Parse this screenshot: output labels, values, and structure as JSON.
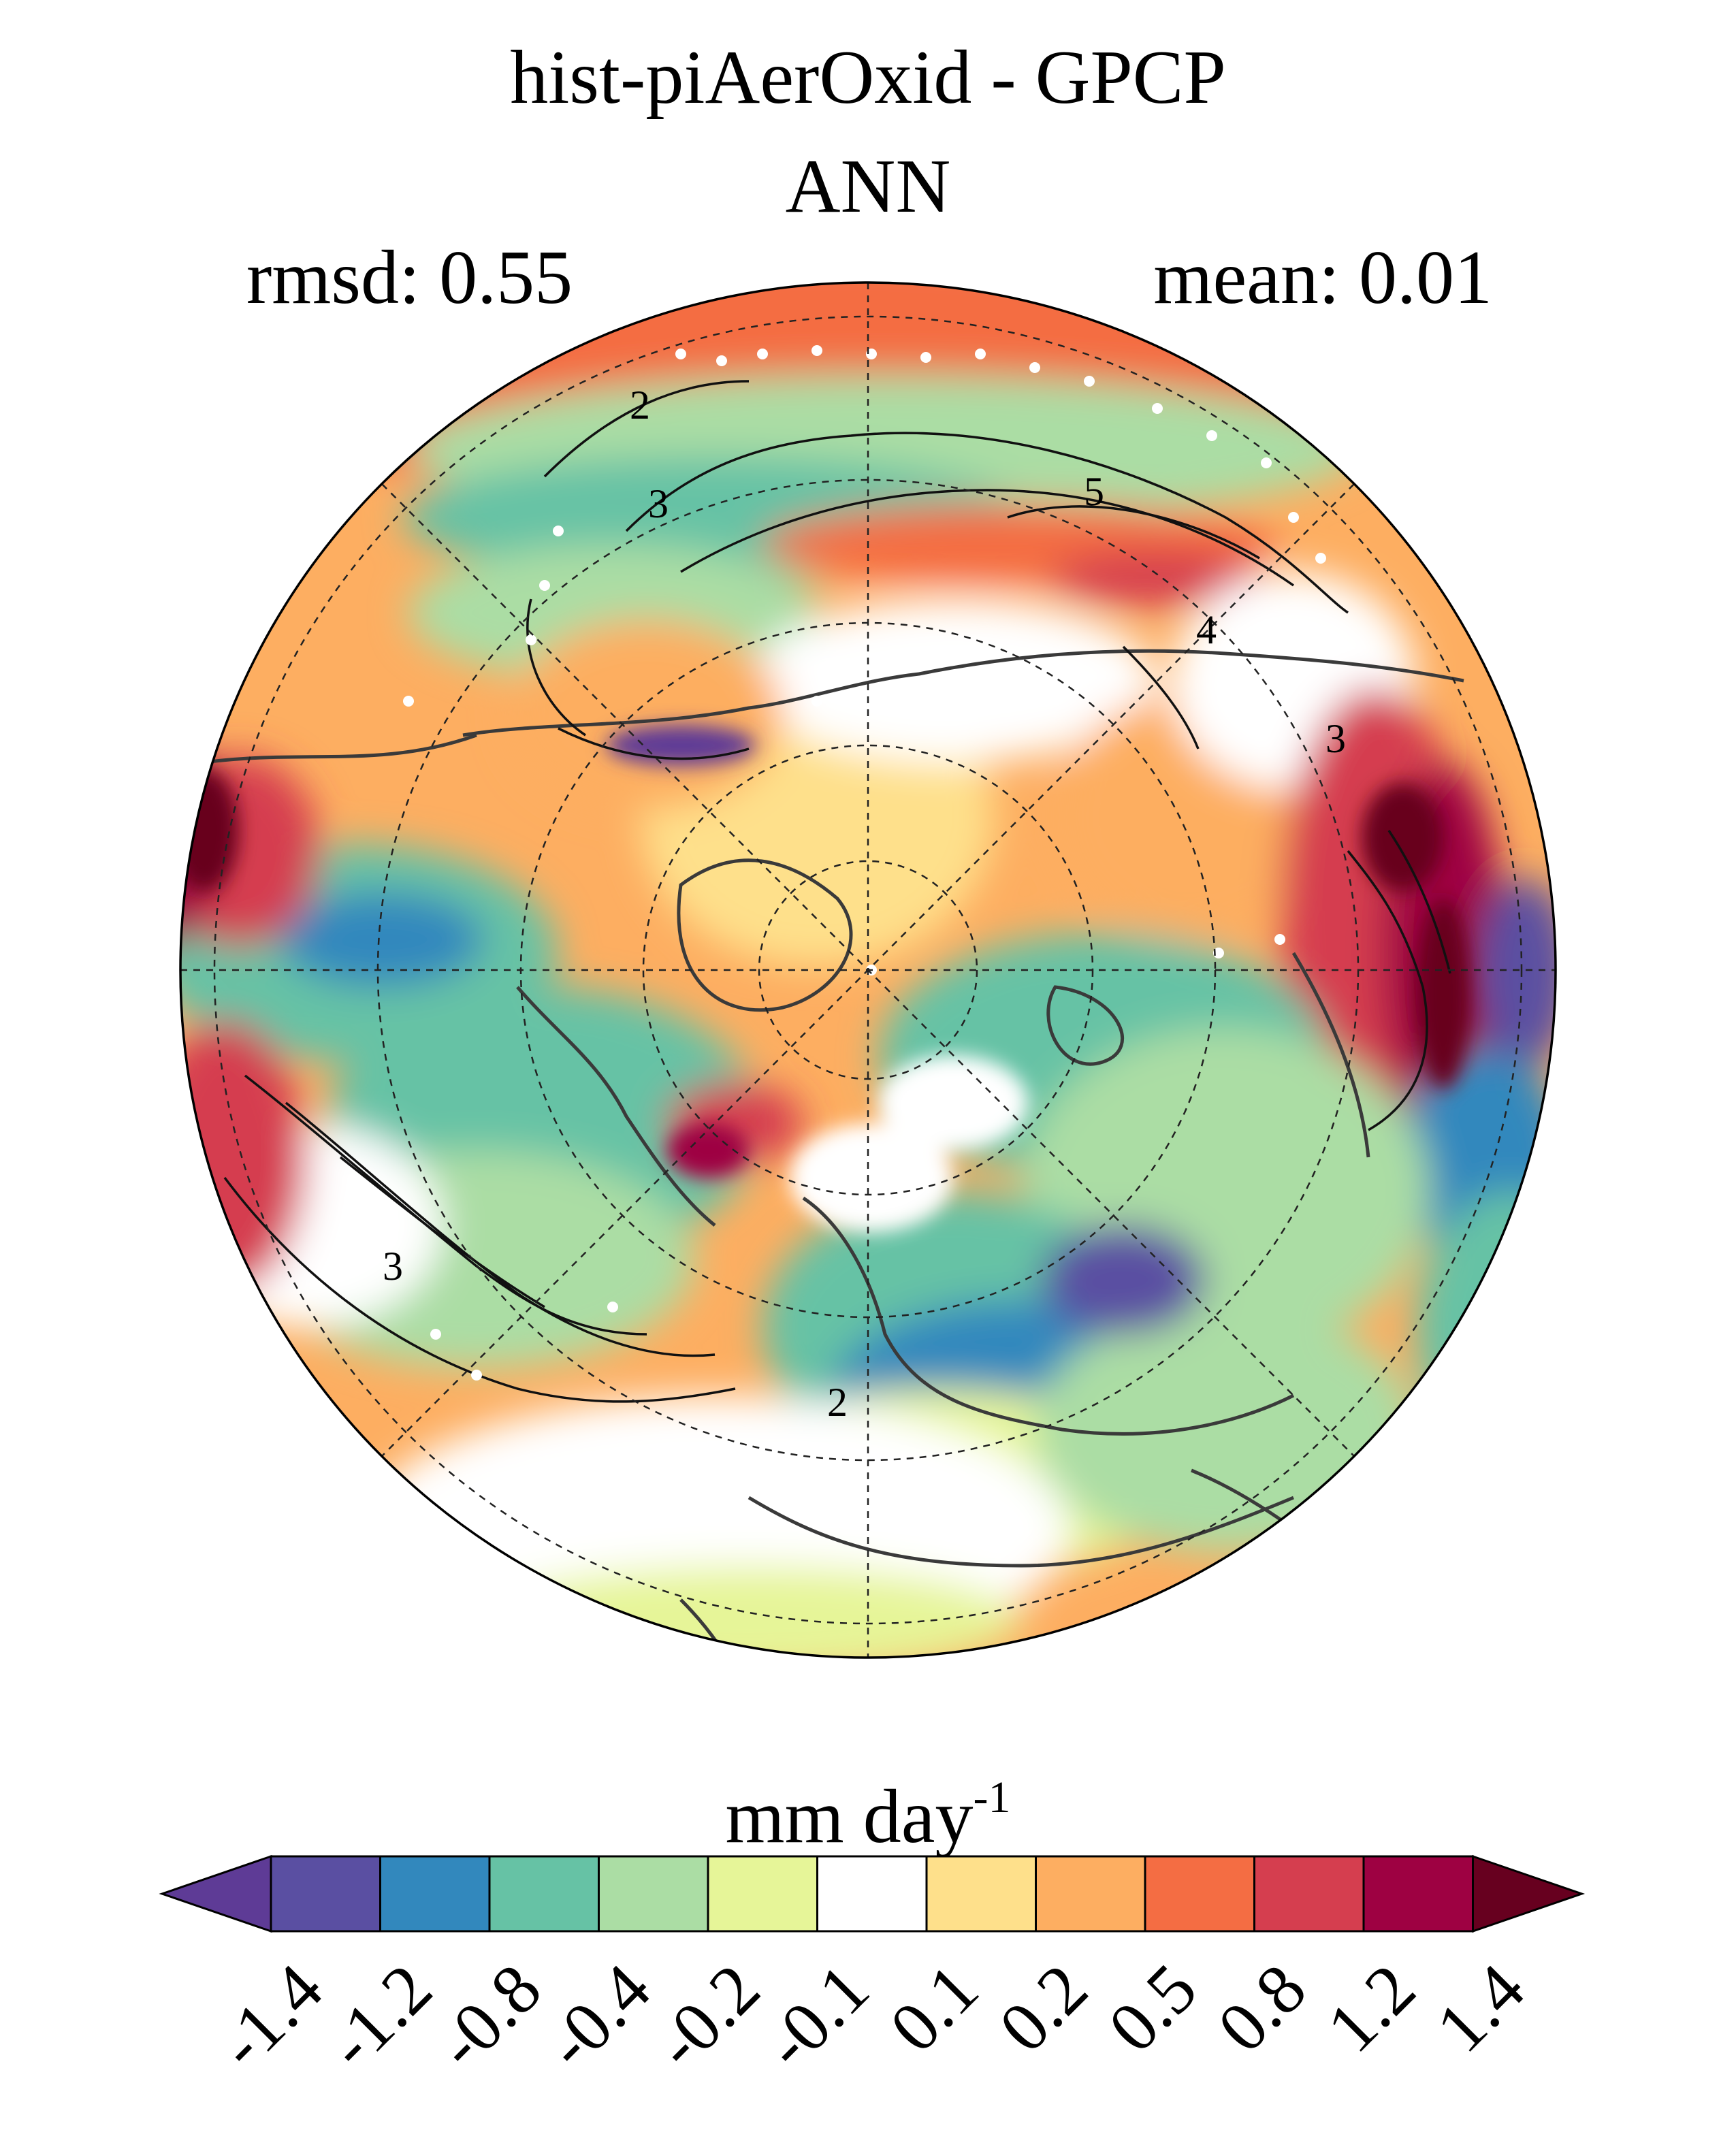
{
  "title": "hist-piAerOxid - GPCP",
  "subtitle": "ANN",
  "stats": {
    "rmsd": "rmsd: 0.55",
    "mean": "mean: 0.01"
  },
  "colorbar": {
    "units_base": "mm day",
    "units_exp": "-1",
    "levels": [
      "-1.4",
      "-1.2",
      "-0.8",
      "-0.4",
      "-0.2",
      "-0.1",
      "0.1",
      "0.2",
      "0.5",
      "0.8",
      "1.2",
      "1.4"
    ],
    "colors": [
      "#5e3b96",
      "#5a4fa2",
      "#3288bd",
      "#66c2a5",
      "#abdda4",
      "#e6f598",
      "#ffffff",
      "#fee08b",
      "#fdae61",
      "#f46d43",
      "#d53e4f",
      "#9e0142",
      "#67001f"
    ]
  },
  "map": {
    "projection": "north polar stereographic",
    "contour_labels": [
      "2",
      "3",
      "5",
      "4",
      "3",
      "3",
      "2"
    ]
  }
}
